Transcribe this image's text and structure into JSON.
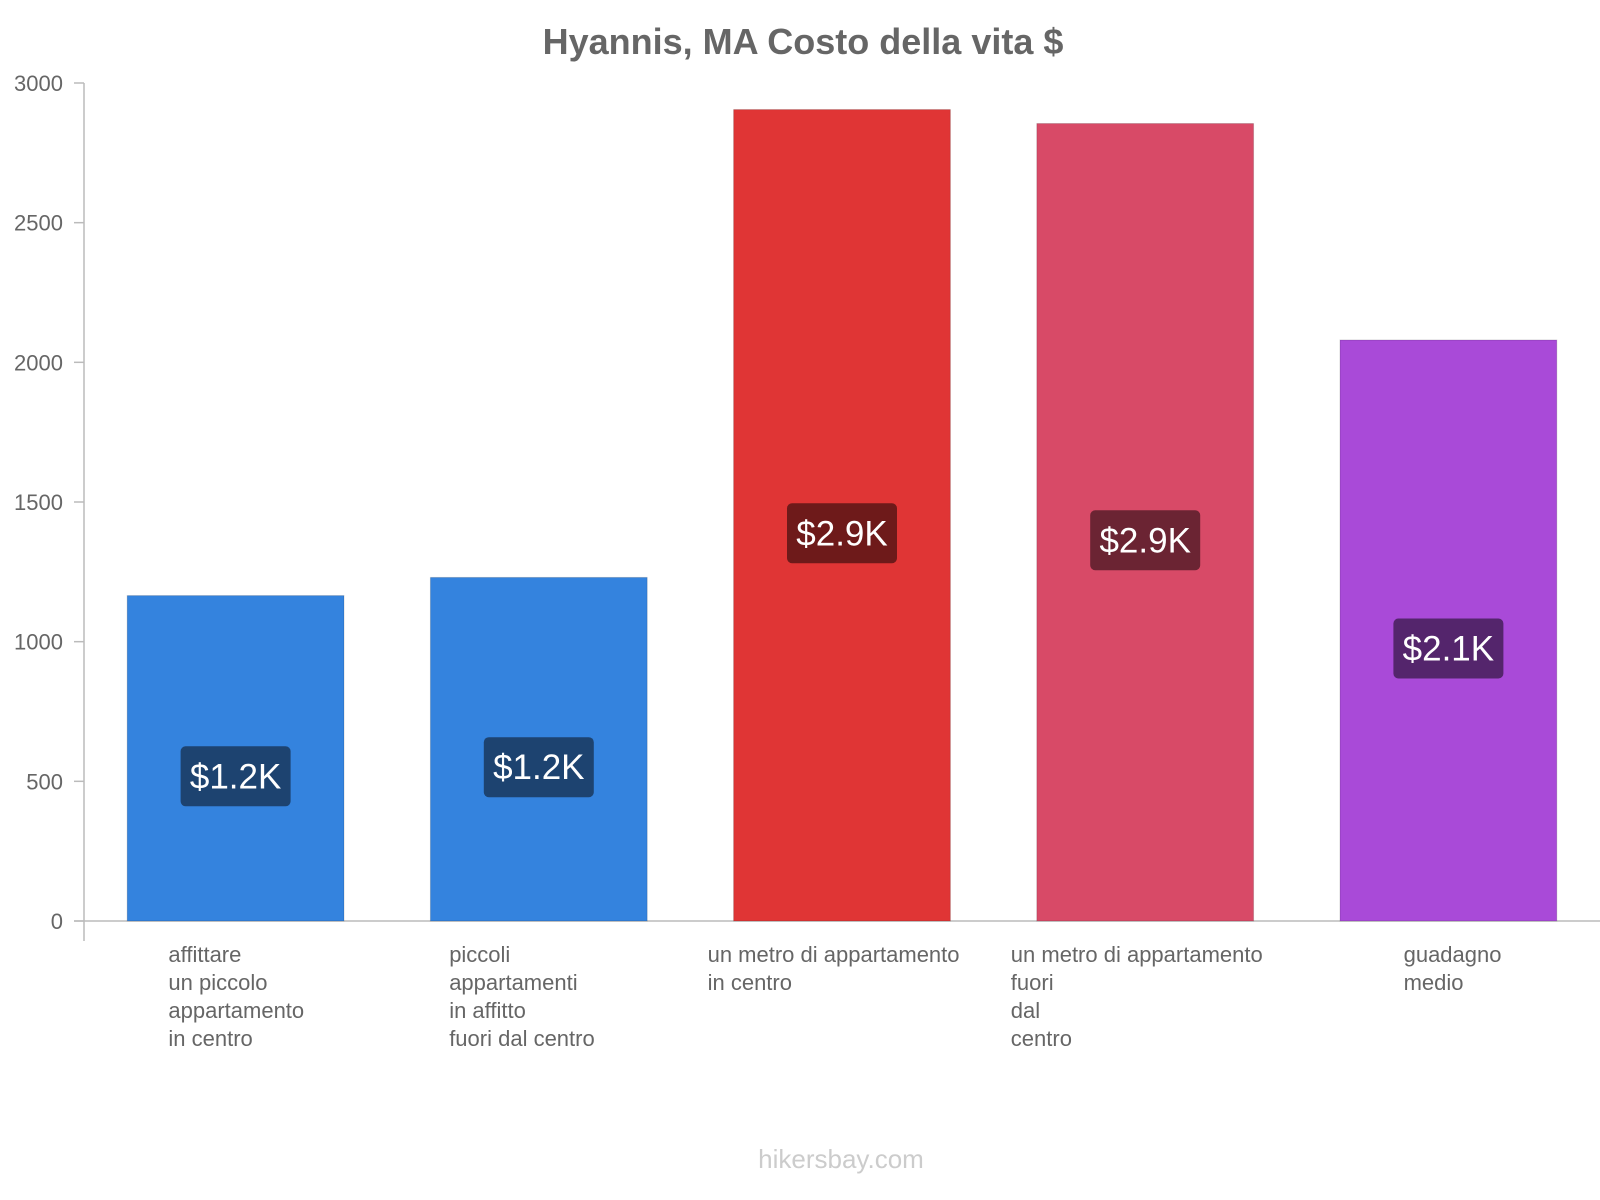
{
  "chart_data": {
    "type": "bar",
    "title": "Hyannis, MA Costo della vita $",
    "xlabel": "",
    "ylabel": "",
    "ylim": [
      0,
      3000
    ],
    "yticks": [
      0,
      500,
      1000,
      1500,
      2000,
      2500,
      3000
    ],
    "grid": false,
    "legend": "none",
    "categories": [
      [
        "affittare",
        "un piccolo",
        "appartamento",
        "in centro"
      ],
      [
        "piccoli",
        "appartamenti",
        "in affitto",
        "fuori dal centro"
      ],
      [
        "un metro di appartamento",
        "in centro"
      ],
      [
        "un metro di appartamento",
        "fuori",
        "dal",
        "centro"
      ],
      [
        "guadagno",
        "medio"
      ]
    ],
    "values": [
      1165,
      1230,
      2905,
      2855,
      2080
    ],
    "value_labels": [
      "$1.2K",
      "$1.2K",
      "$2.9K",
      "$2.9K",
      "$2.1K"
    ],
    "bar_colors": [
      "#3483de",
      "#3483de",
      "#e03535",
      "#d84a67",
      "#a94ad8"
    ],
    "label_bg_colors": [
      "#1d4370",
      "#1d4370",
      "#6e1a1a",
      "#6b2433",
      "#54256c"
    ]
  },
  "watermark": "hikersbay.com"
}
